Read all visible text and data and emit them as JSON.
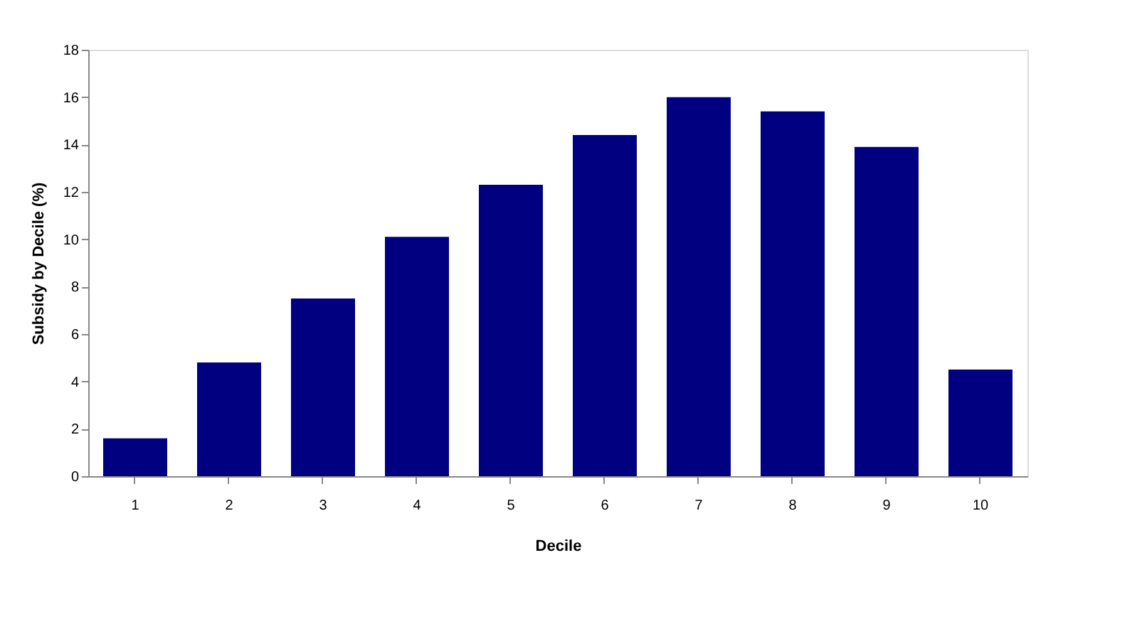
{
  "chart_data": {
    "type": "bar",
    "xlabel": "Decile",
    "ylabel": "Subsidy by Decile (%)",
    "categories": [
      "1",
      "2",
      "3",
      "4",
      "5",
      "6",
      "7",
      "8",
      "9",
      "10"
    ],
    "values": [
      1.6,
      4.8,
      7.5,
      10.1,
      12.3,
      14.4,
      16.0,
      15.4,
      13.9,
      4.5
    ],
    "color": "#000080",
    "ylim": [
      0,
      18
    ],
    "yticks": [
      0,
      2,
      4,
      6,
      8,
      10,
      12,
      14,
      16,
      18
    ],
    "grid": false
  }
}
